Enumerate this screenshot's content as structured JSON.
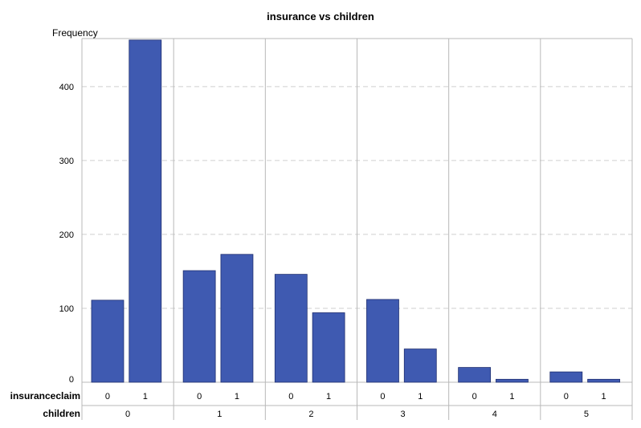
{
  "chart_data": {
    "type": "bar",
    "title": "insurance vs children",
    "ylabel": "Frequency",
    "ylim": [
      0,
      465
    ],
    "yticks": [
      0,
      100,
      200,
      300,
      400
    ],
    "grid": true,
    "inner_axis_label": "insuranceclaim",
    "outer_axis_label": "children",
    "groups": [
      {
        "label": "0",
        "categories": [
          "0",
          "1"
        ],
        "values": [
          111,
          463
        ]
      },
      {
        "label": "1",
        "categories": [
          "0",
          "1"
        ],
        "values": [
          151,
          173
        ]
      },
      {
        "label": "2",
        "categories": [
          "0",
          "1"
        ],
        "values": [
          146,
          94
        ]
      },
      {
        "label": "3",
        "categories": [
          "0",
          "1"
        ],
        "values": [
          112,
          45
        ]
      },
      {
        "label": "4",
        "categories": [
          "0",
          "1"
        ],
        "values": [
          20,
          4
        ]
      },
      {
        "label": "5",
        "categories": [
          "0",
          "1"
        ],
        "values": [
          14,
          4
        ]
      }
    ],
    "bar_color": "#3f5ab1"
  }
}
